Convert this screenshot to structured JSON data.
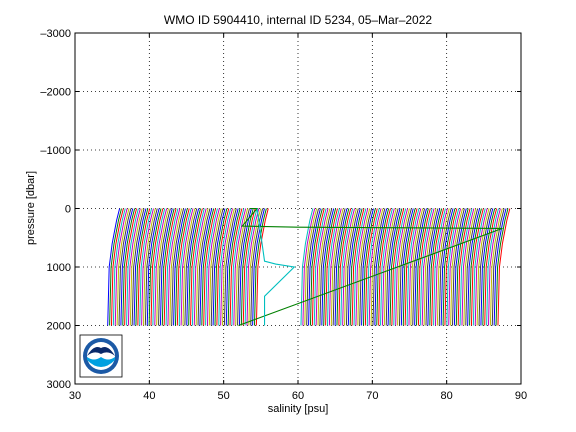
{
  "chart_data": {
    "type": "line",
    "title": "WMO ID 5904410, internal ID 5234, 05–Mar–2022",
    "xlabel": "salinity [psu]",
    "ylabel": "pressure [dbar]",
    "xlim": [
      30,
      90
    ],
    "ylim": [
      -3000,
      3000
    ],
    "y_axis_reversed": true,
    "grid": true,
    "grid_style": "dotted",
    "x_ticks": [
      30,
      40,
      50,
      60,
      70,
      80,
      90
    ],
    "x_tick_labels": [
      "30",
      "40",
      "50",
      "60",
      "70",
      "80",
      "90"
    ],
    "y_ticks": [
      -3000,
      -2000,
      -1000,
      0,
      1000,
      2000,
      3000
    ],
    "y_tick_labels": [
      "–3000",
      "–2000",
      "–1000",
      "0",
      "1000",
      "2000",
      "3000"
    ],
    "series_palette": [
      "#0000ff",
      "#008000",
      "#ff0000",
      "#00bfbf",
      "#bf00bf",
      "#bfbf00",
      "#404040"
    ],
    "profile_shape": {
      "pressure": [
        0,
        100,
        200,
        400,
        600,
        800,
        1000,
        1500,
        2000
      ],
      "salinity_offset": [
        0,
        -0.2,
        -0.4,
        -0.7,
        -1.0,
        -1.2,
        -1.4,
        -1.5,
        -1.6
      ]
    },
    "profile_groups": [
      {
        "surface_salinity_start": 36.0,
        "surface_salinity_end": 56.0,
        "count": 80
      },
      {
        "surface_salinity_start": 62.0,
        "surface_salinity_end": 88.5,
        "count": 105
      }
    ],
    "highlighted_profiles": [
      {
        "color": "#008000",
        "pressure": [
          0,
          0,
          300,
          320,
          330,
          340,
          2000
        ],
        "salinity": [
          53.5,
          54.5,
          52.5,
          60,
          75,
          87.5,
          52
        ]
      },
      {
        "color": "#00bfbf",
        "pressure": [
          0,
          900,
          950,
          1000,
          1500,
          2000
        ],
        "salinity": [
          54.5,
          55.5,
          57,
          59.5,
          55.5,
          55.5
        ]
      }
    ],
    "logo": {
      "label": "NOAA",
      "position": "bottom-left"
    }
  }
}
